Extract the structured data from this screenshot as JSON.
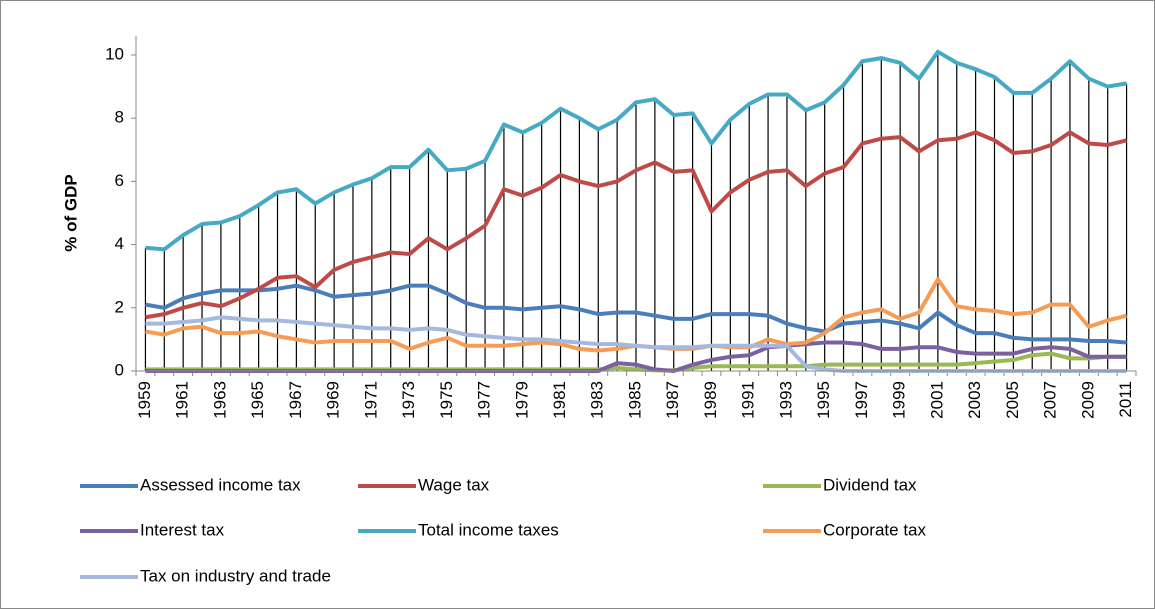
{
  "chart_data": {
    "type": "line",
    "y_label": "% of GDP",
    "categories": [
      "1959",
      null,
      "1961",
      null,
      "1963",
      null,
      "1965",
      null,
      "1967",
      null,
      "1969",
      null,
      "1971",
      null,
      "1973",
      null,
      "1975",
      null,
      "1977",
      null,
      "1979",
      null,
      "1981",
      null,
      "1983",
      null,
      "1985",
      null,
      "1987",
      null,
      "1989",
      null,
      "1991",
      null,
      "1993",
      null,
      "1995",
      null,
      "1997",
      null,
      "1999",
      null,
      "2001",
      null,
      "2003",
      null,
      "2005",
      null,
      "2007",
      null,
      "2009",
      null,
      "2011"
    ],
    "ylim": [
      0,
      10.6
    ],
    "yticks": [
      0,
      2,
      4,
      6,
      8,
      10
    ],
    "grid": false,
    "drop_lines": true,
    "series": [
      {
        "name": "Assessed income tax",
        "color": "#4a7ebb",
        "values": [
          2.1,
          2.0,
          2.3,
          2.45,
          2.55,
          2.55,
          2.55,
          2.6,
          2.7,
          2.55,
          2.35,
          2.4,
          2.45,
          2.55,
          2.7,
          2.7,
          2.45,
          2.15,
          2.0,
          2.0,
          1.95,
          2.0,
          2.05,
          1.95,
          1.8,
          1.85,
          1.85,
          1.75,
          1.65,
          1.65,
          1.8,
          1.8,
          1.8,
          1.75,
          1.5,
          1.35,
          1.25,
          1.5,
          1.55,
          1.6,
          1.5,
          1.35,
          1.85,
          1.45,
          1.2,
          1.2,
          1.05,
          1.0,
          1.0,
          1.0,
          0.95,
          0.95,
          0.9
        ]
      },
      {
        "name": "Wage tax",
        "color": "#be4b48",
        "values": [
          1.7,
          1.8,
          2.0,
          2.15,
          2.05,
          2.3,
          2.6,
          2.95,
          3.0,
          2.65,
          3.2,
          3.45,
          3.6,
          3.75,
          3.7,
          4.2,
          3.85,
          4.2,
          4.6,
          5.75,
          5.55,
          5.8,
          6.2,
          6.0,
          5.85,
          6.0,
          6.35,
          6.6,
          6.3,
          6.35,
          5.05,
          5.65,
          6.05,
          6.3,
          6.35,
          5.85,
          6.25,
          6.45,
          7.2,
          7.35,
          7.4,
          6.95,
          7.3,
          7.35,
          7.55,
          7.3,
          6.9,
          6.95,
          7.15,
          7.55,
          7.2,
          7.15,
          7.3
        ]
      },
      {
        "name": "Dividend tax",
        "color": "#98b954",
        "values": [
          0.05,
          0.05,
          0.05,
          0.05,
          0.05,
          0.05,
          0.05,
          0.05,
          0.05,
          0.05,
          0.05,
          0.05,
          0.05,
          0.05,
          0.05,
          0.05,
          0.05,
          0.05,
          0.05,
          0.05,
          0.05,
          0.05,
          0.05,
          0.05,
          0.05,
          0.1,
          0.05,
          0.02,
          0.02,
          0.1,
          0.15,
          0.15,
          0.15,
          0.15,
          0.15,
          0.15,
          0.2,
          0.2,
          0.2,
          0.2,
          0.2,
          0.2,
          0.2,
          0.2,
          0.25,
          0.3,
          0.35,
          0.5,
          0.55,
          0.4,
          0.4,
          0.45,
          0.45
        ]
      },
      {
        "name": "Interest tax",
        "color": "#7d60a0",
        "values": [
          0,
          0,
          0,
          0,
          0,
          0,
          0,
          0,
          0,
          0,
          0,
          0,
          0,
          0,
          0,
          0,
          0,
          0,
          0,
          0,
          0,
          0,
          0,
          0,
          0,
          0.25,
          0.2,
          0.05,
          0,
          0.2,
          0.35,
          0.45,
          0.5,
          0.75,
          0.8,
          0.85,
          0.9,
          0.9,
          0.85,
          0.7,
          0.7,
          0.75,
          0.75,
          0.6,
          0.55,
          0.55,
          0.55,
          0.7,
          0.75,
          0.7,
          0.45,
          0.45,
          0.45
        ]
      },
      {
        "name": "Total income taxes",
        "color": "#46aac5",
        "values": [
          3.9,
          3.85,
          4.3,
          4.65,
          4.7,
          4.9,
          5.25,
          5.65,
          5.75,
          5.3,
          5.65,
          5.9,
          6.1,
          6.45,
          6.45,
          7.0,
          6.35,
          6.4,
          6.65,
          7.8,
          7.55,
          7.85,
          8.3,
          8.0,
          7.65,
          7.95,
          8.5,
          8.6,
          8.1,
          8.15,
          7.2,
          7.95,
          8.45,
          8.75,
          8.75,
          8.25,
          8.5,
          9.05,
          9.8,
          9.9,
          9.75,
          9.25,
          10.1,
          9.75,
          9.55,
          9.3,
          8.8,
          8.8,
          9.25,
          9.8,
          9.25,
          9.0,
          9.1
        ]
      },
      {
        "name": "Corporate tax",
        "color": "#f59d56",
        "values": [
          1.25,
          1.15,
          1.35,
          1.4,
          1.2,
          1.2,
          1.25,
          1.1,
          1.0,
          0.9,
          0.95,
          0.95,
          0.95,
          0.95,
          0.7,
          0.9,
          1.05,
          0.8,
          0.8,
          0.8,
          0.85,
          0.9,
          0.85,
          0.7,
          0.65,
          0.7,
          0.8,
          0.75,
          0.7,
          0.7,
          0.8,
          0.75,
          0.75,
          1.0,
          0.85,
          0.9,
          1.2,
          1.7,
          1.85,
          1.95,
          1.65,
          1.85,
          2.9,
          2.05,
          1.95,
          1.9,
          1.8,
          1.85,
          2.1,
          2.1,
          1.4,
          1.6,
          1.75
        ]
      },
      {
        "name": "Tax on industry and trade",
        "color": "#a5b8dd",
        "values": [
          1.5,
          1.5,
          1.55,
          1.6,
          1.7,
          1.65,
          1.6,
          1.6,
          1.55,
          1.5,
          1.45,
          1.4,
          1.35,
          1.35,
          1.3,
          1.35,
          1.3,
          1.15,
          1.1,
          1.05,
          1.0,
          1.0,
          0.95,
          0.9,
          0.85,
          0.85,
          0.8,
          0.75,
          0.75,
          0.75,
          0.8,
          0.8,
          0.8,
          0.8,
          0.8,
          0.15,
          0.05,
          0,
          0,
          0,
          0,
          0,
          0,
          0,
          0,
          0,
          0,
          0,
          0,
          0,
          0,
          0,
          0
        ]
      }
    ]
  }
}
